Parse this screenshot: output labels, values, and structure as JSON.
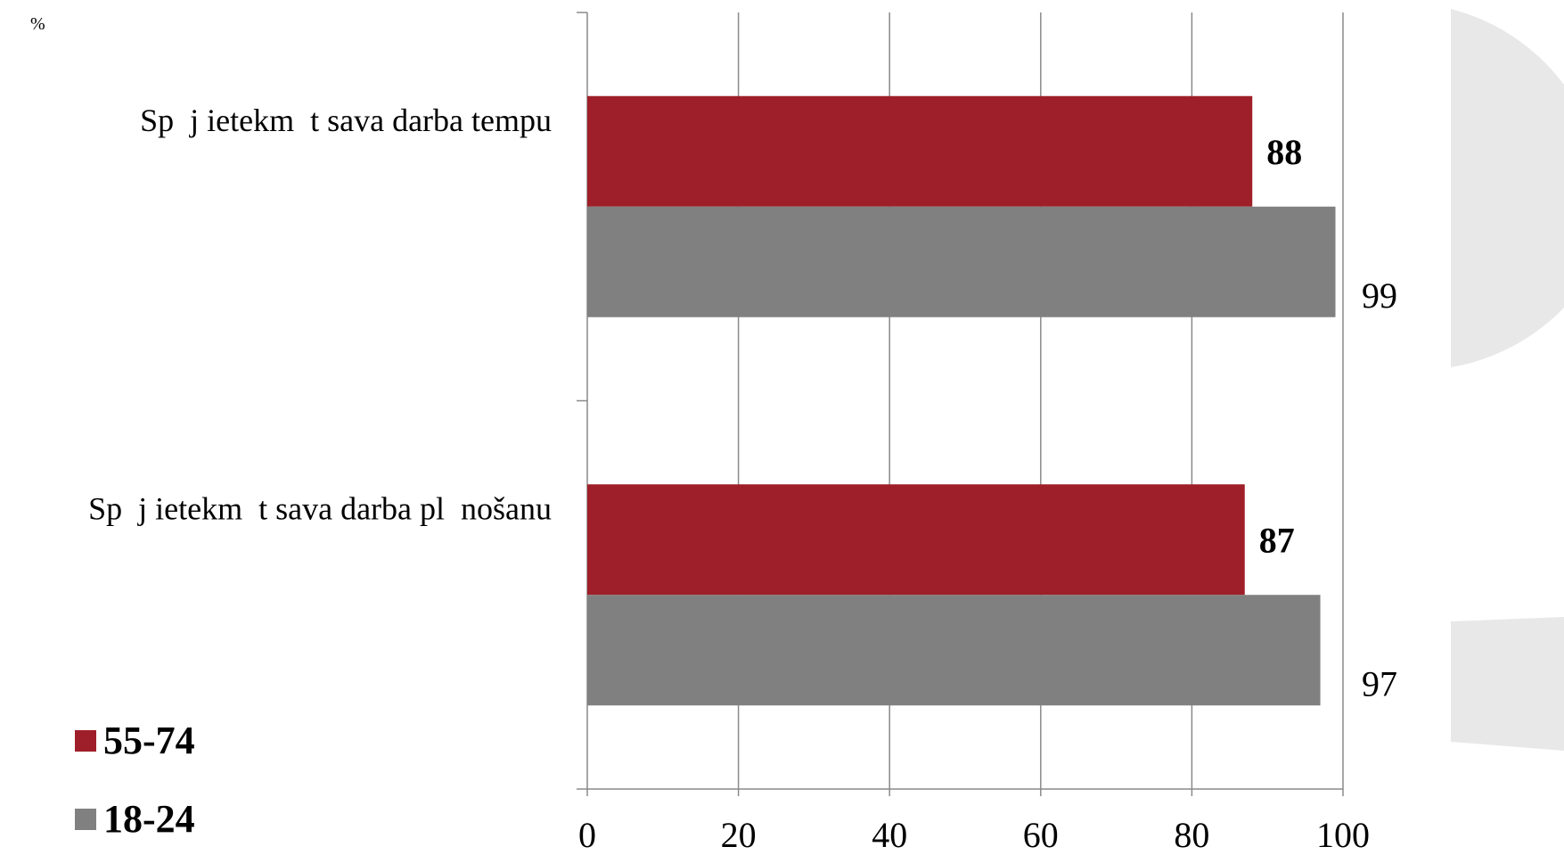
{
  "chart_data": {
    "type": "bar",
    "orientation": "horizontal",
    "unit_label": "%",
    "categories": [
      "Sp  j ietekm  t sava darba tempu",
      "Sp  j ietekm  t sava darba pl  nošanu"
    ],
    "series": [
      {
        "name": "55-74",
        "color": "#9e1f29",
        "values": [
          88,
          87
        ]
      },
      {
        "name": "18-24",
        "color": "#808080",
        "values": [
          99,
          97
        ]
      }
    ],
    "xlim": [
      0,
      100
    ],
    "xticks": [
      "0",
      "20",
      "40",
      "60",
      "80",
      "100"
    ],
    "grid": true,
    "legend": "bottom-left"
  },
  "decor": {
    "shape_color": "#e8e8e8"
  }
}
